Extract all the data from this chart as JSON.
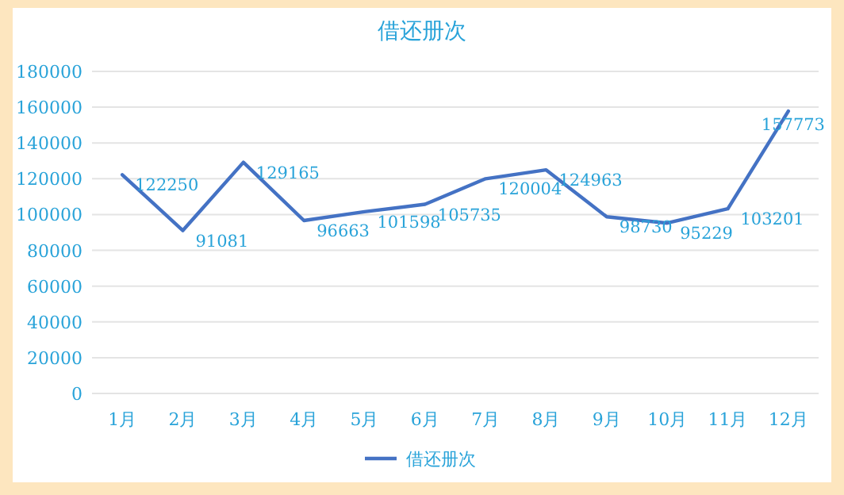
{
  "chart_data": {
    "type": "line",
    "title": "借还册次",
    "categories": [
      "1月",
      "2月",
      "3月",
      "4月",
      "5月",
      "6月",
      "7月",
      "8月",
      "9月",
      "10月",
      "11月",
      "12月"
    ],
    "series": [
      {
        "name": "借还册次",
        "color": "#4472c4",
        "values": [
          122250,
          91081,
          129165,
          96663,
          101598,
          105735,
          120004,
          124963,
          98730,
          95229,
          103201,
          157773
        ]
      }
    ],
    "ylim": [
      0,
      180000
    ],
    "yticks": [
      0,
      20000,
      40000,
      60000,
      80000,
      100000,
      120000,
      140000,
      160000,
      180000
    ],
    "grid": "y",
    "legend": "bottom",
    "data_labels": true
  }
}
